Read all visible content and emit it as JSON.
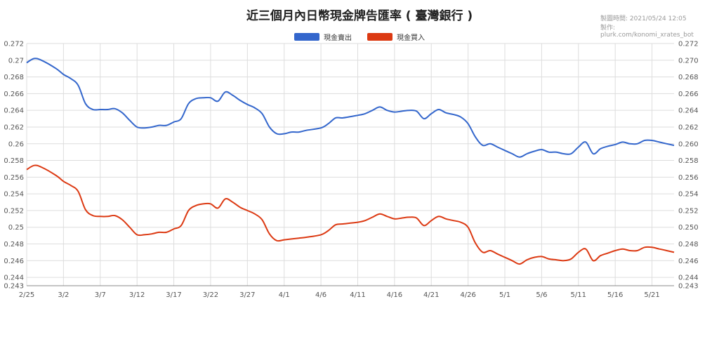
{
  "title": "近三個月內日幣現金牌告匯率 ( 臺灣銀行 )",
  "meta": {
    "time": "製圖時間: 2021/05/24 12:05",
    "creator": "製作: plurk.com/konomi_xrates_bot"
  },
  "colors": {
    "sell": "#3366cc",
    "buy": "#dc3912"
  },
  "chart_data": {
    "type": "line",
    "title": "近三個月內日幣現金牌告匯率 ( 臺灣銀行 )",
    "legend_position": "top",
    "grid": true,
    "ylim": [
      0.243,
      0.272
    ],
    "xlim": [
      "2/25",
      "5/24"
    ],
    "x_tick_labels": [
      "2/25",
      "3/2",
      "3/7",
      "3/12",
      "3/17",
      "3/22",
      "3/27",
      "4/1",
      "4/6",
      "4/11",
      "4/16",
      "4/21",
      "4/26",
      "5/1",
      "5/6",
      "5/11",
      "5/16",
      "5/21"
    ],
    "y_ticks_left": [
      "0.243",
      "0.244",
      "0.246",
      "0.248",
      "0.25",
      "0.252",
      "0.254",
      "0.256",
      "0.258",
      "0.26",
      "0.262",
      "0.264",
      "0.266",
      "0.268",
      "0.27",
      "0.272"
    ],
    "y_ticks_right": [
      "0.243",
      "0.244",
      "0.246",
      "0.248",
      "0.250",
      "0.252",
      "0.254",
      "0.256",
      "0.258",
      "0.260",
      "0.262",
      "0.264",
      "0.266",
      "0.268",
      "0.270",
      "0.272"
    ],
    "series": [
      {
        "name": "現金賣出",
        "color": "#3366cc",
        "points": [
          [
            "2/25",
            0.2697
          ],
          [
            "2/26",
            0.2702
          ],
          [
            "2/27",
            0.27
          ],
          [
            "3/1",
            0.269
          ],
          [
            "3/2",
            0.2683
          ],
          [
            "3/3",
            0.2678
          ],
          [
            "3/4",
            0.267
          ],
          [
            "3/5",
            0.2648
          ],
          [
            "3/6",
            0.2641
          ],
          [
            "3/7",
            0.2641
          ],
          [
            "3/8",
            0.2641
          ],
          [
            "3/9",
            0.2642
          ],
          [
            "3/10",
            0.2637
          ],
          [
            "3/11",
            0.2628
          ],
          [
            "3/12",
            0.262
          ],
          [
            "3/13",
            0.2619
          ],
          [
            "3/14",
            0.262
          ],
          [
            "3/15",
            0.2622
          ],
          [
            "3/16",
            0.2622
          ],
          [
            "3/17",
            0.2626
          ],
          [
            "3/18",
            0.263
          ],
          [
            "3/19",
            0.2648
          ],
          [
            "3/20",
            0.2654
          ],
          [
            "3/21",
            0.2655
          ],
          [
            "3/22",
            0.2655
          ],
          [
            "3/23",
            0.2651
          ],
          [
            "3/24",
            0.2662
          ],
          [
            "3/25",
            0.2658
          ],
          [
            "3/26",
            0.2652
          ],
          [
            "3/27",
            0.2647
          ],
          [
            "3/28",
            0.2643
          ],
          [
            "3/29",
            0.2636
          ],
          [
            "3/30",
            0.262
          ],
          [
            "3/31",
            0.2612
          ],
          [
            "4/1",
            0.2612
          ],
          [
            "4/2",
            0.2614
          ],
          [
            "4/3",
            0.2614
          ],
          [
            "4/4",
            0.2616
          ],
          [
            "4/6",
            0.2619
          ],
          [
            "4/7",
            0.2624
          ],
          [
            "4/8",
            0.2631
          ],
          [
            "4/9",
            0.2631
          ],
          [
            "4/11",
            0.2634
          ],
          [
            "4/12",
            0.2636
          ],
          [
            "4/13",
            0.264
          ],
          [
            "4/14",
            0.2644
          ],
          [
            "4/15",
            0.264
          ],
          [
            "4/16",
            0.2638
          ],
          [
            "4/17",
            0.2639
          ],
          [
            "4/18",
            0.264
          ],
          [
            "4/19",
            0.2639
          ],
          [
            "4/20",
            0.263
          ],
          [
            "4/21",
            0.2636
          ],
          [
            "4/22",
            0.2641
          ],
          [
            "4/23",
            0.2637
          ],
          [
            "4/24",
            0.2635
          ],
          [
            "4/25",
            0.2632
          ],
          [
            "4/26",
            0.2624
          ],
          [
            "4/27",
            0.2608
          ],
          [
            "4/28",
            0.2598
          ],
          [
            "4/29",
            0.26
          ],
          [
            "4/30",
            0.2596
          ],
          [
            "5/1",
            0.2592
          ],
          [
            "5/2",
            0.2588
          ],
          [
            "5/3",
            0.2584
          ],
          [
            "5/4",
            0.2588
          ],
          [
            "5/5",
            0.2591
          ],
          [
            "5/6",
            0.2593
          ],
          [
            "5/7",
            0.259
          ],
          [
            "5/8",
            0.259
          ],
          [
            "5/9",
            0.2588
          ],
          [
            "5/10",
            0.2588
          ],
          [
            "5/11",
            0.2596
          ],
          [
            "5/12",
            0.2602
          ],
          [
            "5/13",
            0.2588
          ],
          [
            "5/14",
            0.2594
          ],
          [
            "5/15",
            0.2597
          ],
          [
            "5/16",
            0.2599
          ],
          [
            "5/17",
            0.2602
          ],
          [
            "5/18",
            0.26
          ],
          [
            "5/19",
            0.26
          ],
          [
            "5/20",
            0.2604
          ],
          [
            "5/21",
            0.2604
          ],
          [
            "5/22",
            0.2602
          ],
          [
            "5/23",
            0.26
          ],
          [
            "5/24",
            0.2598
          ]
        ]
      },
      {
        "name": "現金買入",
        "color": "#dc3912",
        "points": [
          [
            "2/25",
            0.2569
          ],
          [
            "2/26",
            0.2574
          ],
          [
            "2/27",
            0.2572
          ],
          [
            "3/1",
            0.2562
          ],
          [
            "3/2",
            0.2555
          ],
          [
            "3/3",
            0.255
          ],
          [
            "3/4",
            0.2543
          ],
          [
            "3/5",
            0.2521
          ],
          [
            "3/6",
            0.2514
          ],
          [
            "3/7",
            0.2513
          ],
          [
            "3/8",
            0.2513
          ],
          [
            "3/9",
            0.2514
          ],
          [
            "3/10",
            0.2509
          ],
          [
            "3/11",
            0.25
          ],
          [
            "3/12",
            0.2491
          ],
          [
            "3/13",
            0.2491
          ],
          [
            "3/14",
            0.2492
          ],
          [
            "3/15",
            0.2494
          ],
          [
            "3/16",
            0.2494
          ],
          [
            "3/17",
            0.2498
          ],
          [
            "3/18",
            0.2502
          ],
          [
            "3/19",
            0.252
          ],
          [
            "3/20",
            0.2526
          ],
          [
            "3/21",
            0.2528
          ],
          [
            "3/22",
            0.2528
          ],
          [
            "3/23",
            0.2523
          ],
          [
            "3/24",
            0.2534
          ],
          [
            "3/25",
            0.253
          ],
          [
            "3/26",
            0.2524
          ],
          [
            "3/27",
            0.252
          ],
          [
            "3/28",
            0.2516
          ],
          [
            "3/29",
            0.2509
          ],
          [
            "3/30",
            0.2492
          ],
          [
            "3/31",
            0.2484
          ],
          [
            "4/1",
            0.2485
          ],
          [
            "4/2",
            0.2486
          ],
          [
            "4/3",
            0.2487
          ],
          [
            "4/4",
            0.2488
          ],
          [
            "4/6",
            0.2491
          ],
          [
            "4/7",
            0.2496
          ],
          [
            "4/8",
            0.2503
          ],
          [
            "4/9",
            0.2504
          ],
          [
            "4/11",
            0.2506
          ],
          [
            "4/12",
            0.2508
          ],
          [
            "4/13",
            0.2512
          ],
          [
            "4/14",
            0.2516
          ],
          [
            "4/15",
            0.2513
          ],
          [
            "4/16",
            0.251
          ],
          [
            "4/17",
            0.2511
          ],
          [
            "4/18",
            0.2512
          ],
          [
            "4/19",
            0.2511
          ],
          [
            "4/20",
            0.2502
          ],
          [
            "4/21",
            0.2508
          ],
          [
            "4/22",
            0.2513
          ],
          [
            "4/23",
            0.251
          ],
          [
            "4/24",
            0.2508
          ],
          [
            "4/25",
            0.2506
          ],
          [
            "4/26",
            0.25
          ],
          [
            "4/27",
            0.2481
          ],
          [
            "4/28",
            0.247
          ],
          [
            "4/29",
            0.2472
          ],
          [
            "4/30",
            0.2468
          ],
          [
            "5/1",
            0.2464
          ],
          [
            "5/2",
            0.246
          ],
          [
            "5/3",
            0.2456
          ],
          [
            "5/4",
            0.2461
          ],
          [
            "5/5",
            0.2464
          ],
          [
            "5/6",
            0.2465
          ],
          [
            "5/7",
            0.2462
          ],
          [
            "5/8",
            0.2461
          ],
          [
            "5/9",
            0.246
          ],
          [
            "5/10",
            0.2462
          ],
          [
            "5/11",
            0.247
          ],
          [
            "5/12",
            0.2474
          ],
          [
            "5/13",
            0.246
          ],
          [
            "5/14",
            0.2466
          ],
          [
            "5/15",
            0.2469
          ],
          [
            "5/16",
            0.2472
          ],
          [
            "5/17",
            0.2474
          ],
          [
            "5/18",
            0.2472
          ],
          [
            "5/19",
            0.2472
          ],
          [
            "5/20",
            0.2476
          ],
          [
            "5/21",
            0.2476
          ],
          [
            "5/22",
            0.2474
          ],
          [
            "5/23",
            0.2472
          ],
          [
            "5/24",
            0.247
          ]
        ]
      }
    ]
  }
}
